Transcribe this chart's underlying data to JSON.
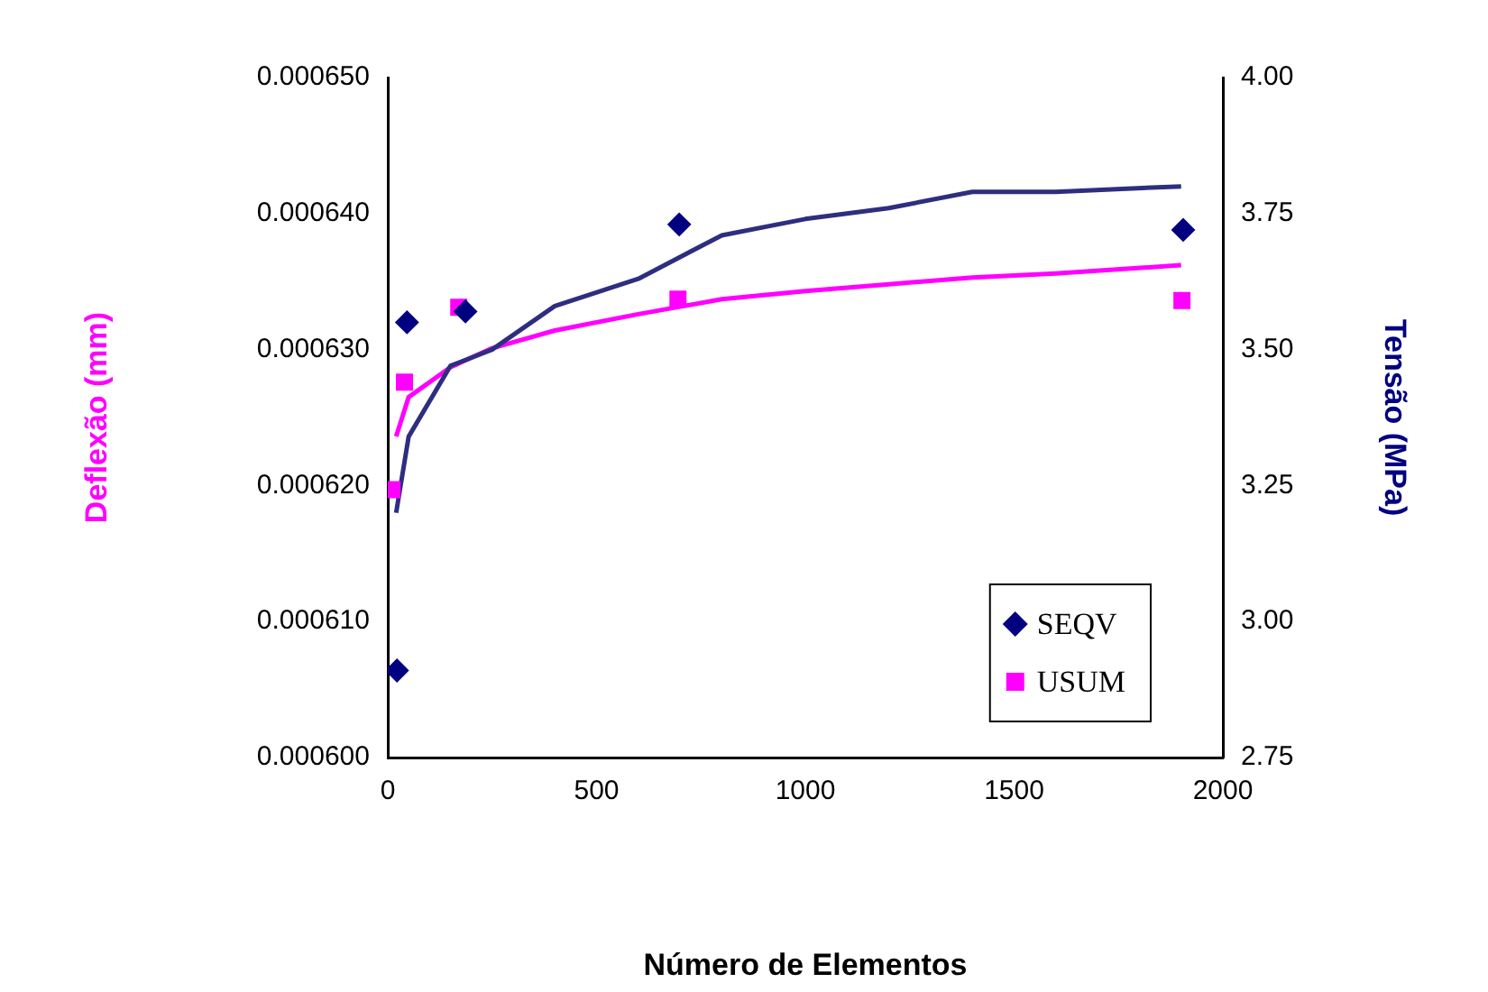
{
  "chart_data": {
    "type": "scatter",
    "xlabel": "Número de Elementos",
    "ylabel": "Deflexão (mm)",
    "y2label": "Tensão (MPa)",
    "xlim": [
      0,
      2000
    ],
    "xticks": [
      0,
      500,
      1000,
      1500,
      2000
    ],
    "ylim": [
      0.0006,
      0.00065
    ],
    "yticks": [
      {
        "value": 0.0006,
        "label": "0.000600"
      },
      {
        "value": 0.00061,
        "label": "0.000610"
      },
      {
        "value": 0.00062,
        "label": "0.000620"
      },
      {
        "value": 0.00063,
        "label": "0.000630"
      },
      {
        "value": 0.00064,
        "label": "0.000640"
      },
      {
        "value": 0.00065,
        "label": "0.000650"
      }
    ],
    "y2lim": [
      2.75,
      4
    ],
    "y2ticks": [
      {
        "value": 2.75,
        "label": "2.75"
      },
      {
        "value": 3,
        "label": "3.00"
      },
      {
        "value": 3.25,
        "label": "3.25"
      },
      {
        "value": 3.5,
        "label": "3.50"
      },
      {
        "value": 3.75,
        "label": "3.75"
      },
      {
        "value": 4,
        "label": "4.00"
      }
    ],
    "grid": false,
    "legend": "bottom right",
    "series": [
      {
        "name": "SEQV",
        "axis": "y2",
        "marker": "diamond",
        "color": "#000080",
        "x": [
          22,
          46,
          186,
          698,
          1905
        ],
        "values": [
          2.91,
          3.55,
          3.57,
          3.73,
          3.72
        ]
      },
      {
        "name": "USUM",
        "marker": "square",
        "color": "#ff00ff",
        "x": [
          10,
          40,
          170,
          695,
          1902
        ],
        "values": [
          0.0006197,
          0.0006276,
          0.0006331,
          0.0006337,
          0.0006336
        ]
      },
      {
        "type": "line",
        "axis": "y2",
        "marker": "none",
        "color": "#2e2e80",
        "x": [
          20,
          50,
          150,
          250,
          400,
          600,
          800,
          1000,
          1200,
          1400,
          1600,
          1900
        ],
        "values": [
          3.2,
          3.34,
          3.47,
          3.5,
          3.58,
          3.63,
          3.71,
          3.74,
          3.76,
          3.79,
          3.79,
          3.8
        ]
      },
      {
        "type": "line",
        "marker": "none",
        "color": "#ff00ff",
        "x": [
          20,
          50,
          150,
          250,
          400,
          600,
          800,
          1000,
          1200,
          1400,
          1600,
          1900
        ],
        "values": [
          0.0006236,
          0.0006265,
          0.0006287,
          0.0006301,
          0.0006314,
          0.0006326,
          0.0006337,
          0.0006343,
          0.0006348,
          0.0006353,
          0.0006356,
          0.0006362
        ]
      }
    ]
  }
}
